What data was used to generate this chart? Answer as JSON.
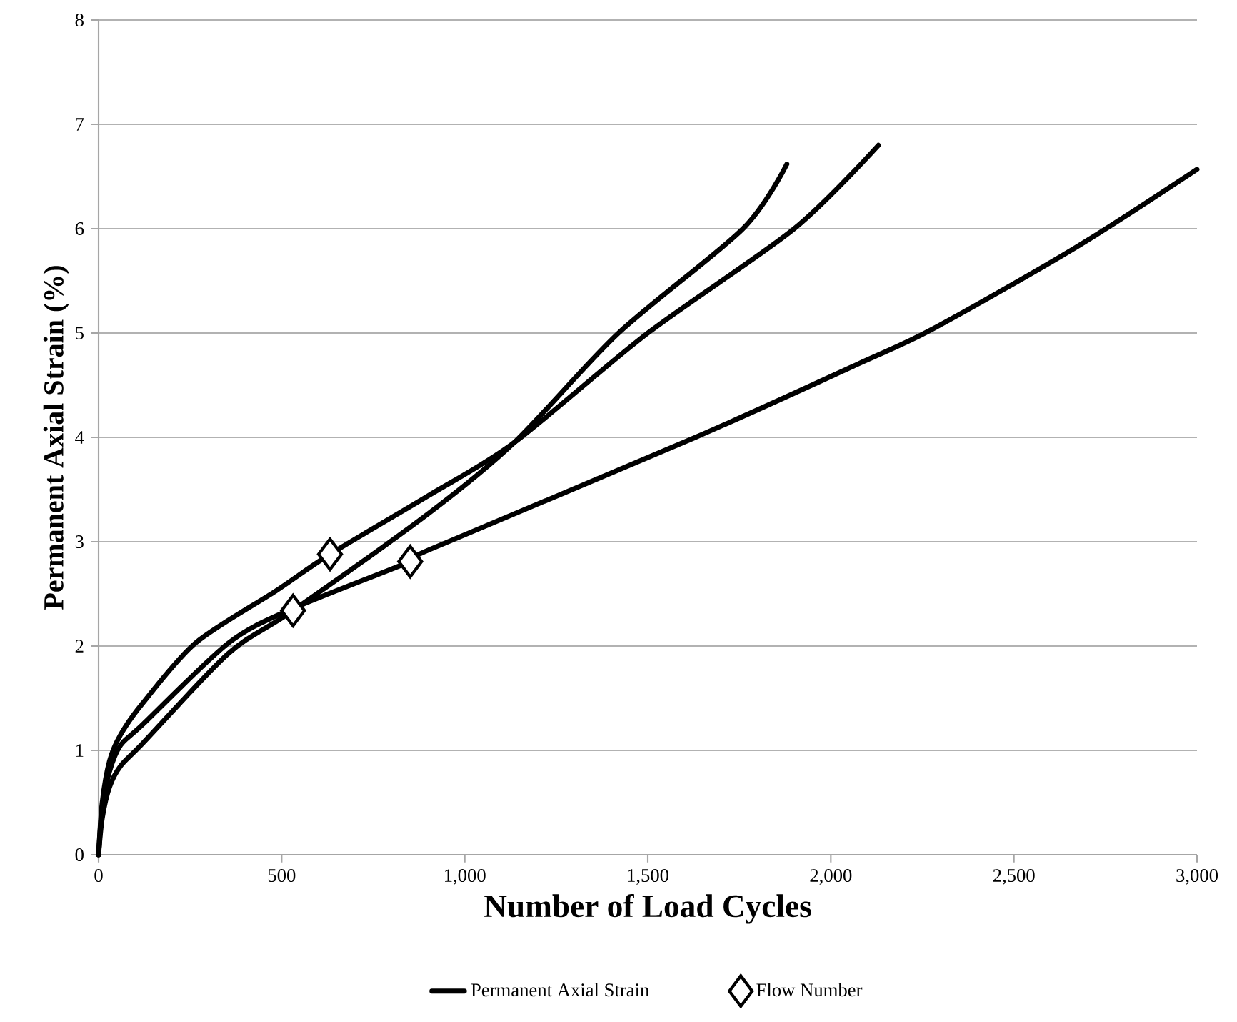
{
  "chart_data": {
    "type": "line",
    "xlabel": "Number of Load Cycles",
    "ylabel": "Permanent Axial Strain (%)",
    "xlim": [
      0,
      3000
    ],
    "xticks": [
      0,
      {
        "value": 500,
        "label": "500"
      },
      {
        "value": 1000,
        "label": "1,000"
      },
      {
        "value": 1500,
        "label": "1,500"
      },
      {
        "value": 2000,
        "label": "2,000"
      },
      {
        "value": 2500,
        "label": "2,500"
      },
      {
        "value": 3000,
        "label": "3,000"
      }
    ],
    "ylim": [
      0,
      8
    ],
    "yticks": [
      0,
      1,
      2,
      3,
      4,
      5,
      6,
      7,
      8
    ],
    "grid": "y",
    "legend": "bottom",
    "marker": "none",
    "line_style": "solid",
    "series": [
      {
        "name": "Permanent Axial Strain",
        "color": "#000000",
        "x": [
          0,
          10,
          30,
          60,
          120,
          265,
          485,
          632,
          900,
          1135,
          1500,
          1900,
          2130
        ],
        "values": [
          0,
          0.5,
          0.9,
          1.15,
          1.45,
          2.03,
          2.53,
          2.88,
          3.44,
          3.95,
          5.0,
          6.0,
          6.8
        ]
      },
      {
        "color": "#000000",
        "x": [
          0,
          10,
          30,
          60,
          121,
          355,
          531,
          901,
          1135,
          1420,
          1760,
          1880
        ],
        "values": [
          0,
          0.35,
          0.65,
          0.85,
          1.07,
          1.93,
          2.34,
          3.27,
          3.95,
          5.0,
          6.0,
          6.62
        ]
      },
      {
        "color": "#000000",
        "x": [
          0,
          10,
          30,
          60,
          121,
          355,
          531,
          851,
          901,
          1630,
          2072,
          2279,
          2669,
          3000
        ],
        "values": [
          0,
          0.45,
          0.8,
          1.05,
          1.25,
          2.03,
          2.36,
          2.81,
          2.92,
          4.0,
          4.7,
          5.04,
          5.82,
          6.57
        ]
      },
      {
        "name": "Flow Number",
        "type": "scatter",
        "marker": "diamond",
        "color": "#000000",
        "x": [
          531,
          632,
          851
        ],
        "values": [
          2.34,
          2.88,
          2.81
        ]
      }
    ]
  }
}
